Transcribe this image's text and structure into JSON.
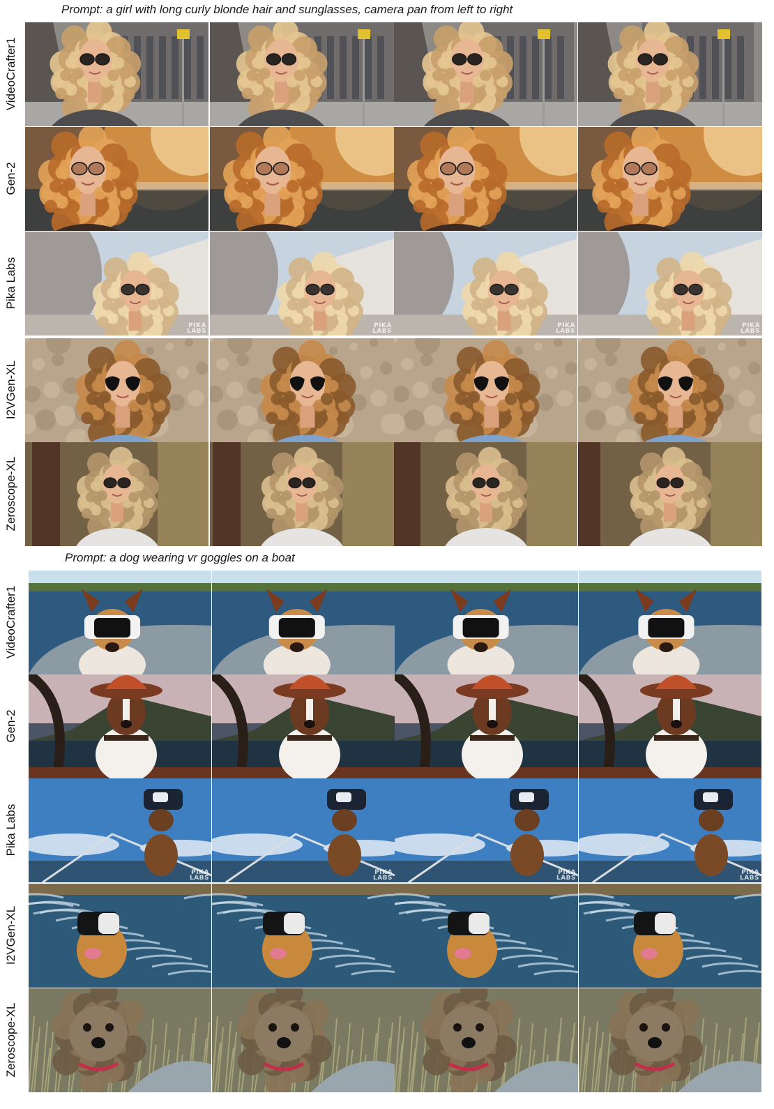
{
  "figure": {
    "sections": [
      {
        "id": "girl",
        "prompt": "Prompt: a girl with long curly blonde hair and sunglasses, camera pan from left to right",
        "rows": [
          {
            "label": "VideoCrafter1",
            "scene": "girl-street"
          },
          {
            "label": "Gen-2",
            "scene": "girl-autumn"
          },
          {
            "label": "Pika Labs",
            "scene": "girl-building"
          },
          {
            "label": "I2VGen-XL",
            "scene": "girl-wall"
          },
          {
            "label": "Zeroscope-XL",
            "scene": "girl-indoor"
          }
        ]
      },
      {
        "id": "dog",
        "prompt": "Prompt: a dog wearing vr goggles on a boat",
        "rows": [
          {
            "label": "VideoCrafter1",
            "scene": "dog-vr-boat"
          },
          {
            "label": "Gen-2",
            "scene": "dog-hat-boat"
          },
          {
            "label": "Pika Labs",
            "scene": "dog-vr-sky"
          },
          {
            "label": "I2VGen-XL",
            "scene": "dog-vr-waves"
          },
          {
            "label": "Zeroscope-XL",
            "scene": "dog-yorkie-grass"
          }
        ]
      }
    ],
    "frames_per_row": 4,
    "watermark": "PIKA LABS"
  }
}
